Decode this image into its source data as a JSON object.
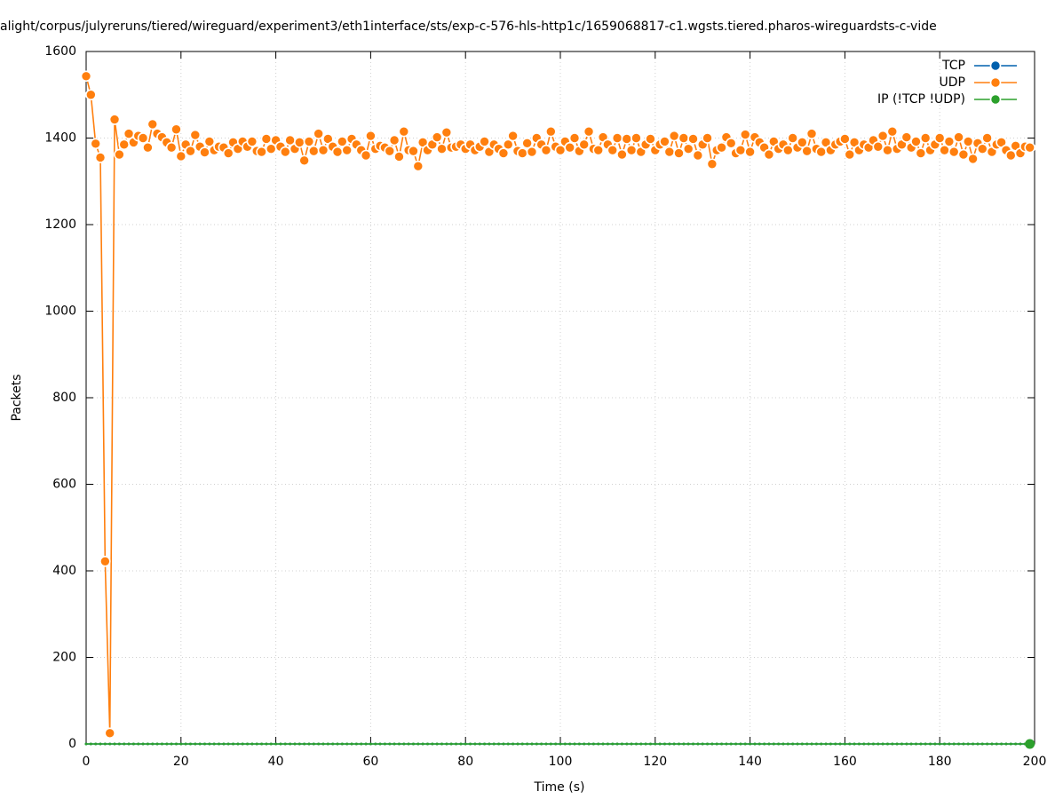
{
  "chart_data": {
    "type": "line",
    "title": "alight/corpus/julyreruns/tiered/wireguard/experiment3/eth1interface/sts/exp-c-576-hls-http1c/1659068817-c1.wgsts.tiered.pharos-wireguardsts-c-vide",
    "x_label": "Time (s)",
    "y_label": "Packets",
    "x": [
      0,
      1,
      2,
      3,
      4,
      5,
      6,
      7,
      8,
      9,
      10,
      11,
      12,
      13,
      14,
      15,
      16,
      17,
      18,
      19,
      20,
      21,
      22,
      23,
      24,
      25,
      26,
      27,
      28,
      29,
      30,
      31,
      32,
      33,
      34,
      35,
      36,
      37,
      38,
      39,
      40,
      41,
      42,
      43,
      44,
      45,
      46,
      47,
      48,
      49,
      50,
      51,
      52,
      53,
      54,
      55,
      56,
      57,
      58,
      59,
      60,
      61,
      62,
      63,
      64,
      65,
      66,
      67,
      68,
      69,
      70,
      71,
      72,
      73,
      74,
      75,
      76,
      77,
      78,
      79,
      80,
      81,
      82,
      83,
      84,
      85,
      86,
      87,
      88,
      89,
      90,
      91,
      92,
      93,
      94,
      95,
      96,
      97,
      98,
      99,
      100,
      101,
      102,
      103,
      104,
      105,
      106,
      107,
      108,
      109,
      110,
      111,
      112,
      113,
      114,
      115,
      116,
      117,
      118,
      119,
      120,
      121,
      122,
      123,
      124,
      125,
      126,
      127,
      128,
      129,
      130,
      131,
      132,
      133,
      134,
      135,
      136,
      137,
      138,
      139,
      140,
      141,
      142,
      143,
      144,
      145,
      146,
      147,
      148,
      149,
      150,
      151,
      152,
      153,
      154,
      155,
      156,
      157,
      158,
      159,
      160,
      161,
      162,
      163,
      164,
      165,
      166,
      167,
      168,
      169,
      170,
      171,
      172,
      173,
      174,
      175,
      176,
      177,
      178,
      179,
      180,
      181,
      182,
      183,
      184,
      185,
      186,
      187,
      188,
      189,
      190,
      191,
      192,
      193,
      194,
      195,
      196,
      197,
      198,
      199
    ],
    "series": [
      {
        "name": "TCP",
        "color": "#0060ad",
        "values": [
          0,
          0,
          0,
          0,
          0,
          0,
          0,
          0,
          0,
          0,
          0,
          0,
          0,
          0,
          0,
          0,
          0,
          0,
          0,
          0,
          0,
          0,
          0,
          0,
          0,
          0,
          0,
          0,
          0,
          0,
          0,
          0,
          0,
          0,
          0,
          0,
          0,
          0,
          0,
          0,
          0,
          0,
          0,
          0,
          0,
          0,
          0,
          0,
          0,
          0,
          0,
          0,
          0,
          0,
          0,
          0,
          0,
          0,
          0,
          0,
          0,
          0,
          0,
          0,
          0,
          0,
          0,
          0,
          0,
          0,
          0,
          0,
          0,
          0,
          0,
          0,
          0,
          0,
          0,
          0,
          0,
          0,
          0,
          0,
          0,
          0,
          0,
          0,
          0,
          0,
          0,
          0,
          0,
          0,
          0,
          0,
          0,
          0,
          0,
          0,
          0,
          0,
          0,
          0,
          0,
          0,
          0,
          0,
          0,
          0,
          0,
          0,
          0,
          0,
          0,
          0,
          0,
          0,
          0,
          0,
          0,
          0,
          0,
          0,
          0,
          0,
          0,
          0,
          0,
          0,
          0,
          0,
          0,
          0,
          0,
          0,
          0,
          0,
          0,
          0,
          0,
          0,
          0,
          0,
          0,
          0,
          0,
          0,
          0,
          0,
          0,
          0,
          0,
          0,
          0,
          0,
          0,
          0,
          0,
          0,
          0,
          0,
          0,
          0,
          0,
          0,
          0,
          0,
          0,
          0,
          0,
          0,
          0,
          0,
          0,
          0,
          0,
          0,
          0,
          0,
          0,
          0,
          0,
          0,
          0,
          0,
          0,
          0,
          0,
          0,
          0,
          0,
          0,
          0,
          0,
          0,
          0,
          0,
          0,
          0
        ]
      },
      {
        "name": "UDP",
        "color": "#ff7f0e",
        "values": [
          1543,
          1500,
          1387,
          1355,
          422,
          25,
          1443,
          1362,
          1385,
          1410,
          1390,
          1405,
          1400,
          1378,
          1432,
          1410,
          1402,
          1390,
          1378,
          1420,
          1358,
          1385,
          1370,
          1407,
          1380,
          1367,
          1392,
          1372,
          1380,
          1378,
          1365,
          1390,
          1375,
          1392,
          1380,
          1392,
          1370,
          1368,
          1398,
          1375,
          1395,
          1380,
          1368,
          1395,
          1375,
          1390,
          1348,
          1392,
          1370,
          1410,
          1372,
          1398,
          1380,
          1368,
          1392,
          1372,
          1398,
          1385,
          1372,
          1360,
          1405,
          1375,
          1382,
          1378,
          1370,
          1395,
          1357,
          1415,
          1372,
          1370,
          1335,
          1390,
          1372,
          1385,
          1402,
          1375,
          1413,
          1378,
          1380,
          1385,
          1375,
          1385,
          1372,
          1380,
          1392,
          1368,
          1385,
          1375,
          1365,
          1385,
          1405,
          1370,
          1365,
          1388,
          1368,
          1400,
          1385,
          1372,
          1415,
          1380,
          1372,
          1392,
          1378,
          1400,
          1370,
          1385,
          1415,
          1375,
          1372,
          1402,
          1385,
          1372,
          1400,
          1362,
          1398,
          1372,
          1400,
          1368,
          1385,
          1398,
          1372,
          1385,
          1392,
          1368,
          1405,
          1365,
          1400,
          1375,
          1398,
          1360,
          1385,
          1400,
          1340,
          1372,
          1378,
          1402,
          1388,
          1365,
          1372,
          1408,
          1368,
          1402,
          1390,
          1378,
          1362,
          1392,
          1375,
          1385,
          1372,
          1400,
          1378,
          1390,
          1370,
          1410,
          1375,
          1368,
          1390,
          1372,
          1385,
          1392,
          1398,
          1362,
          1390,
          1372,
          1385,
          1378,
          1395,
          1380,
          1405,
          1372,
          1415,
          1375,
          1385,
          1402,
          1378,
          1392,
          1365,
          1400,
          1372,
          1385,
          1400,
          1372,
          1392,
          1368,
          1402,
          1362,
          1392,
          1352,
          1388,
          1375,
          1400,
          1368,
          1385,
          1390,
          1372,
          1360,
          1382,
          1365,
          1380,
          1378
        ]
      },
      {
        "name": "IP (!TCP  !UDP)",
        "color": "#2ca02c",
        "values": [
          0,
          0,
          0,
          0,
          0,
          0,
          0,
          0,
          0,
          0,
          0,
          0,
          0,
          0,
          0,
          0,
          0,
          0,
          0,
          0,
          0,
          0,
          0,
          0,
          0,
          0,
          0,
          0,
          0,
          0,
          0,
          0,
          0,
          0,
          0,
          0,
          0,
          0,
          0,
          0,
          0,
          0,
          0,
          0,
          0,
          0,
          0,
          0,
          0,
          0,
          0,
          0,
          0,
          0,
          0,
          0,
          0,
          0,
          0,
          0,
          0,
          0,
          0,
          0,
          0,
          0,
          0,
          0,
          0,
          0,
          0,
          0,
          0,
          0,
          0,
          0,
          0,
          0,
          0,
          0,
          0,
          0,
          0,
          0,
          0,
          0,
          0,
          0,
          0,
          0,
          0,
          0,
          0,
          0,
          0,
          0,
          0,
          0,
          0,
          0,
          0,
          0,
          0,
          0,
          0,
          0,
          0,
          0,
          0,
          0,
          0,
          0,
          0,
          0,
          0,
          0,
          0,
          0,
          0,
          0,
          0,
          0,
          0,
          0,
          0,
          0,
          0,
          0,
          0,
          0,
          0,
          0,
          0,
          0,
          0,
          0,
          0,
          0,
          0,
          0,
          0,
          0,
          0,
          0,
          0,
          0,
          0,
          0,
          0,
          0,
          0,
          0,
          0,
          0,
          0,
          0,
          0,
          0,
          0,
          0,
          0,
          0,
          0,
          0,
          0,
          0,
          0,
          0,
          0,
          0,
          0,
          0,
          0,
          0,
          0,
          0,
          0,
          0,
          0,
          0,
          0,
          0,
          0,
          0,
          0,
          0,
          0,
          0,
          0,
          0,
          0,
          0,
          0,
          0,
          0,
          0,
          0,
          0,
          0,
          0
        ]
      }
    ],
    "xlim": [
      0,
      200
    ],
    "xticks": [
      0,
      20,
      40,
      60,
      80,
      100,
      120,
      140,
      160,
      180,
      200
    ],
    "ylim": [
      0,
      1600
    ],
    "yticks": [
      0,
      200,
      400,
      600,
      800,
      1000,
      1200,
      1400,
      1600
    ],
    "grid": true,
    "legend": "top-right"
  }
}
